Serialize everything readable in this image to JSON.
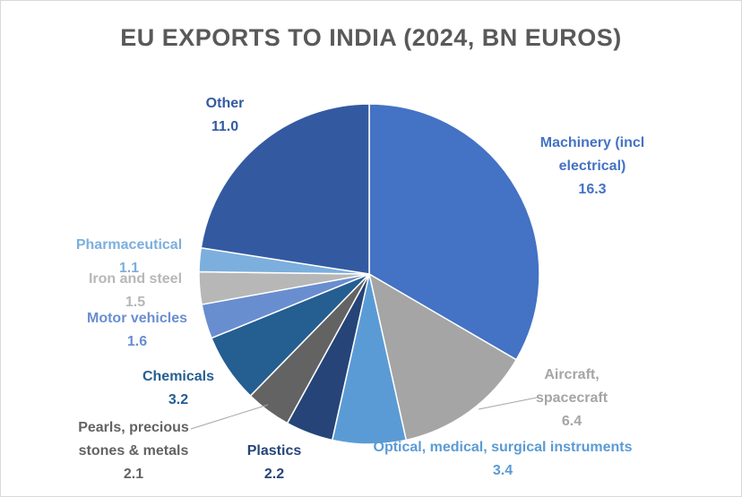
{
  "chart_data": {
    "type": "pie",
    "title": "EU EXPORTS TO INDIA (2024, BN EUROS)",
    "slices": [
      {
        "label": [
          "Machinery (incl",
          "electrical)"
        ],
        "value": 16.3,
        "value_text": "16.3",
        "color": "#4472C4"
      },
      {
        "label": [
          "Aircraft,",
          "spacecraft"
        ],
        "value": 6.4,
        "value_text": "6.4",
        "color": "#A5A5A5"
      },
      {
        "label": [
          "Optical, medical, surgical instruments"
        ],
        "value": 3.4,
        "value_text": "3.4",
        "color": "#5B9BD5"
      },
      {
        "label": [
          "Plastics"
        ],
        "value": 2.2,
        "value_text": "2.2",
        "color": "#264478"
      },
      {
        "label": [
          "Pearls, precious",
          "stones & metals"
        ],
        "value": 2.1,
        "value_text": "2.1",
        "color": "#636363"
      },
      {
        "label": [
          "Chemicals"
        ],
        "value": 3.2,
        "value_text": "3.2",
        "color": "#255E91"
      },
      {
        "label": [
          "Motor vehicles"
        ],
        "value": 1.6,
        "value_text": "1.6",
        "color": "#698ED0"
      },
      {
        "label": [
          "Iron and steel"
        ],
        "value": 1.5,
        "value_text": "1.5",
        "color": "#B7B7B7"
      },
      {
        "label": [
          "Pharmaceutical"
        ],
        "value": 1.1,
        "value_text": "1.1",
        "color": "#7CAFDD"
      },
      {
        "label": [
          "Other"
        ],
        "value": 11.0,
        "value_text": "11.0",
        "color": "#335AA1"
      }
    ]
  }
}
